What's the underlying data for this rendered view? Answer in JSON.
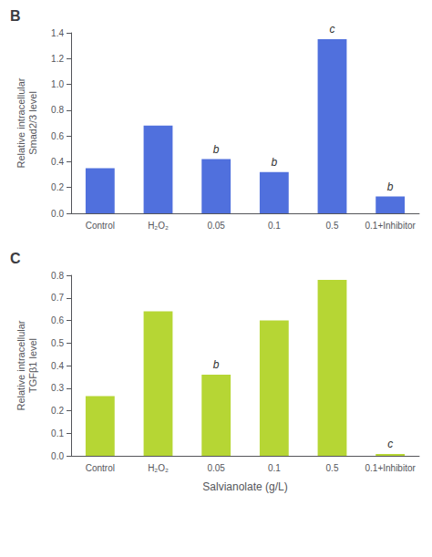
{
  "chart_data": [
    {
      "type": "bar",
      "title": "B",
      "categories": [
        "Control",
        "H₂O₂",
        "0.05",
        "0.1",
        "0.5",
        "0.1+Inhibitor"
      ],
      "values": [
        0.35,
        0.68,
        0.42,
        0.32,
        1.35,
        0.13
      ],
      "annotations": [
        null,
        null,
        "b",
        "b",
        "c",
        "b"
      ],
      "ylabel": "Relative intracellular\nSmad2/3 level",
      "ylim": [
        0,
        1.4
      ],
      "yticks": [
        {
          "value": 0,
          "label": "0.0"
        },
        0.2,
        0.4,
        0.6,
        0.8,
        {
          "value": 1,
          "label": "1.0"
        },
        1.2,
        1.4
      ],
      "grid": false
    },
    {
      "type": "bar",
      "title": "C",
      "categories": [
        "Control",
        "H₂O₂",
        "0.05",
        "0.1",
        "0.5",
        "0.1+Inhibitor"
      ],
      "values": [
        0.265,
        0.64,
        0.36,
        0.6,
        0.78,
        0.008
      ],
      "annotations": [
        null,
        null,
        "b",
        null,
        null,
        "c"
      ],
      "ylabel": "Relative intracellular\nTGFβ1 level",
      "xlabel": "Salvianolate (g/L)",
      "ylim": [
        0,
        0.8
      ],
      "yticks": [
        {
          "value": 0,
          "label": "0.0"
        },
        0.1,
        0.2,
        0.3,
        0.4,
        0.5,
        0.6,
        0.7,
        0.8
      ],
      "grid": false
    }
  ]
}
